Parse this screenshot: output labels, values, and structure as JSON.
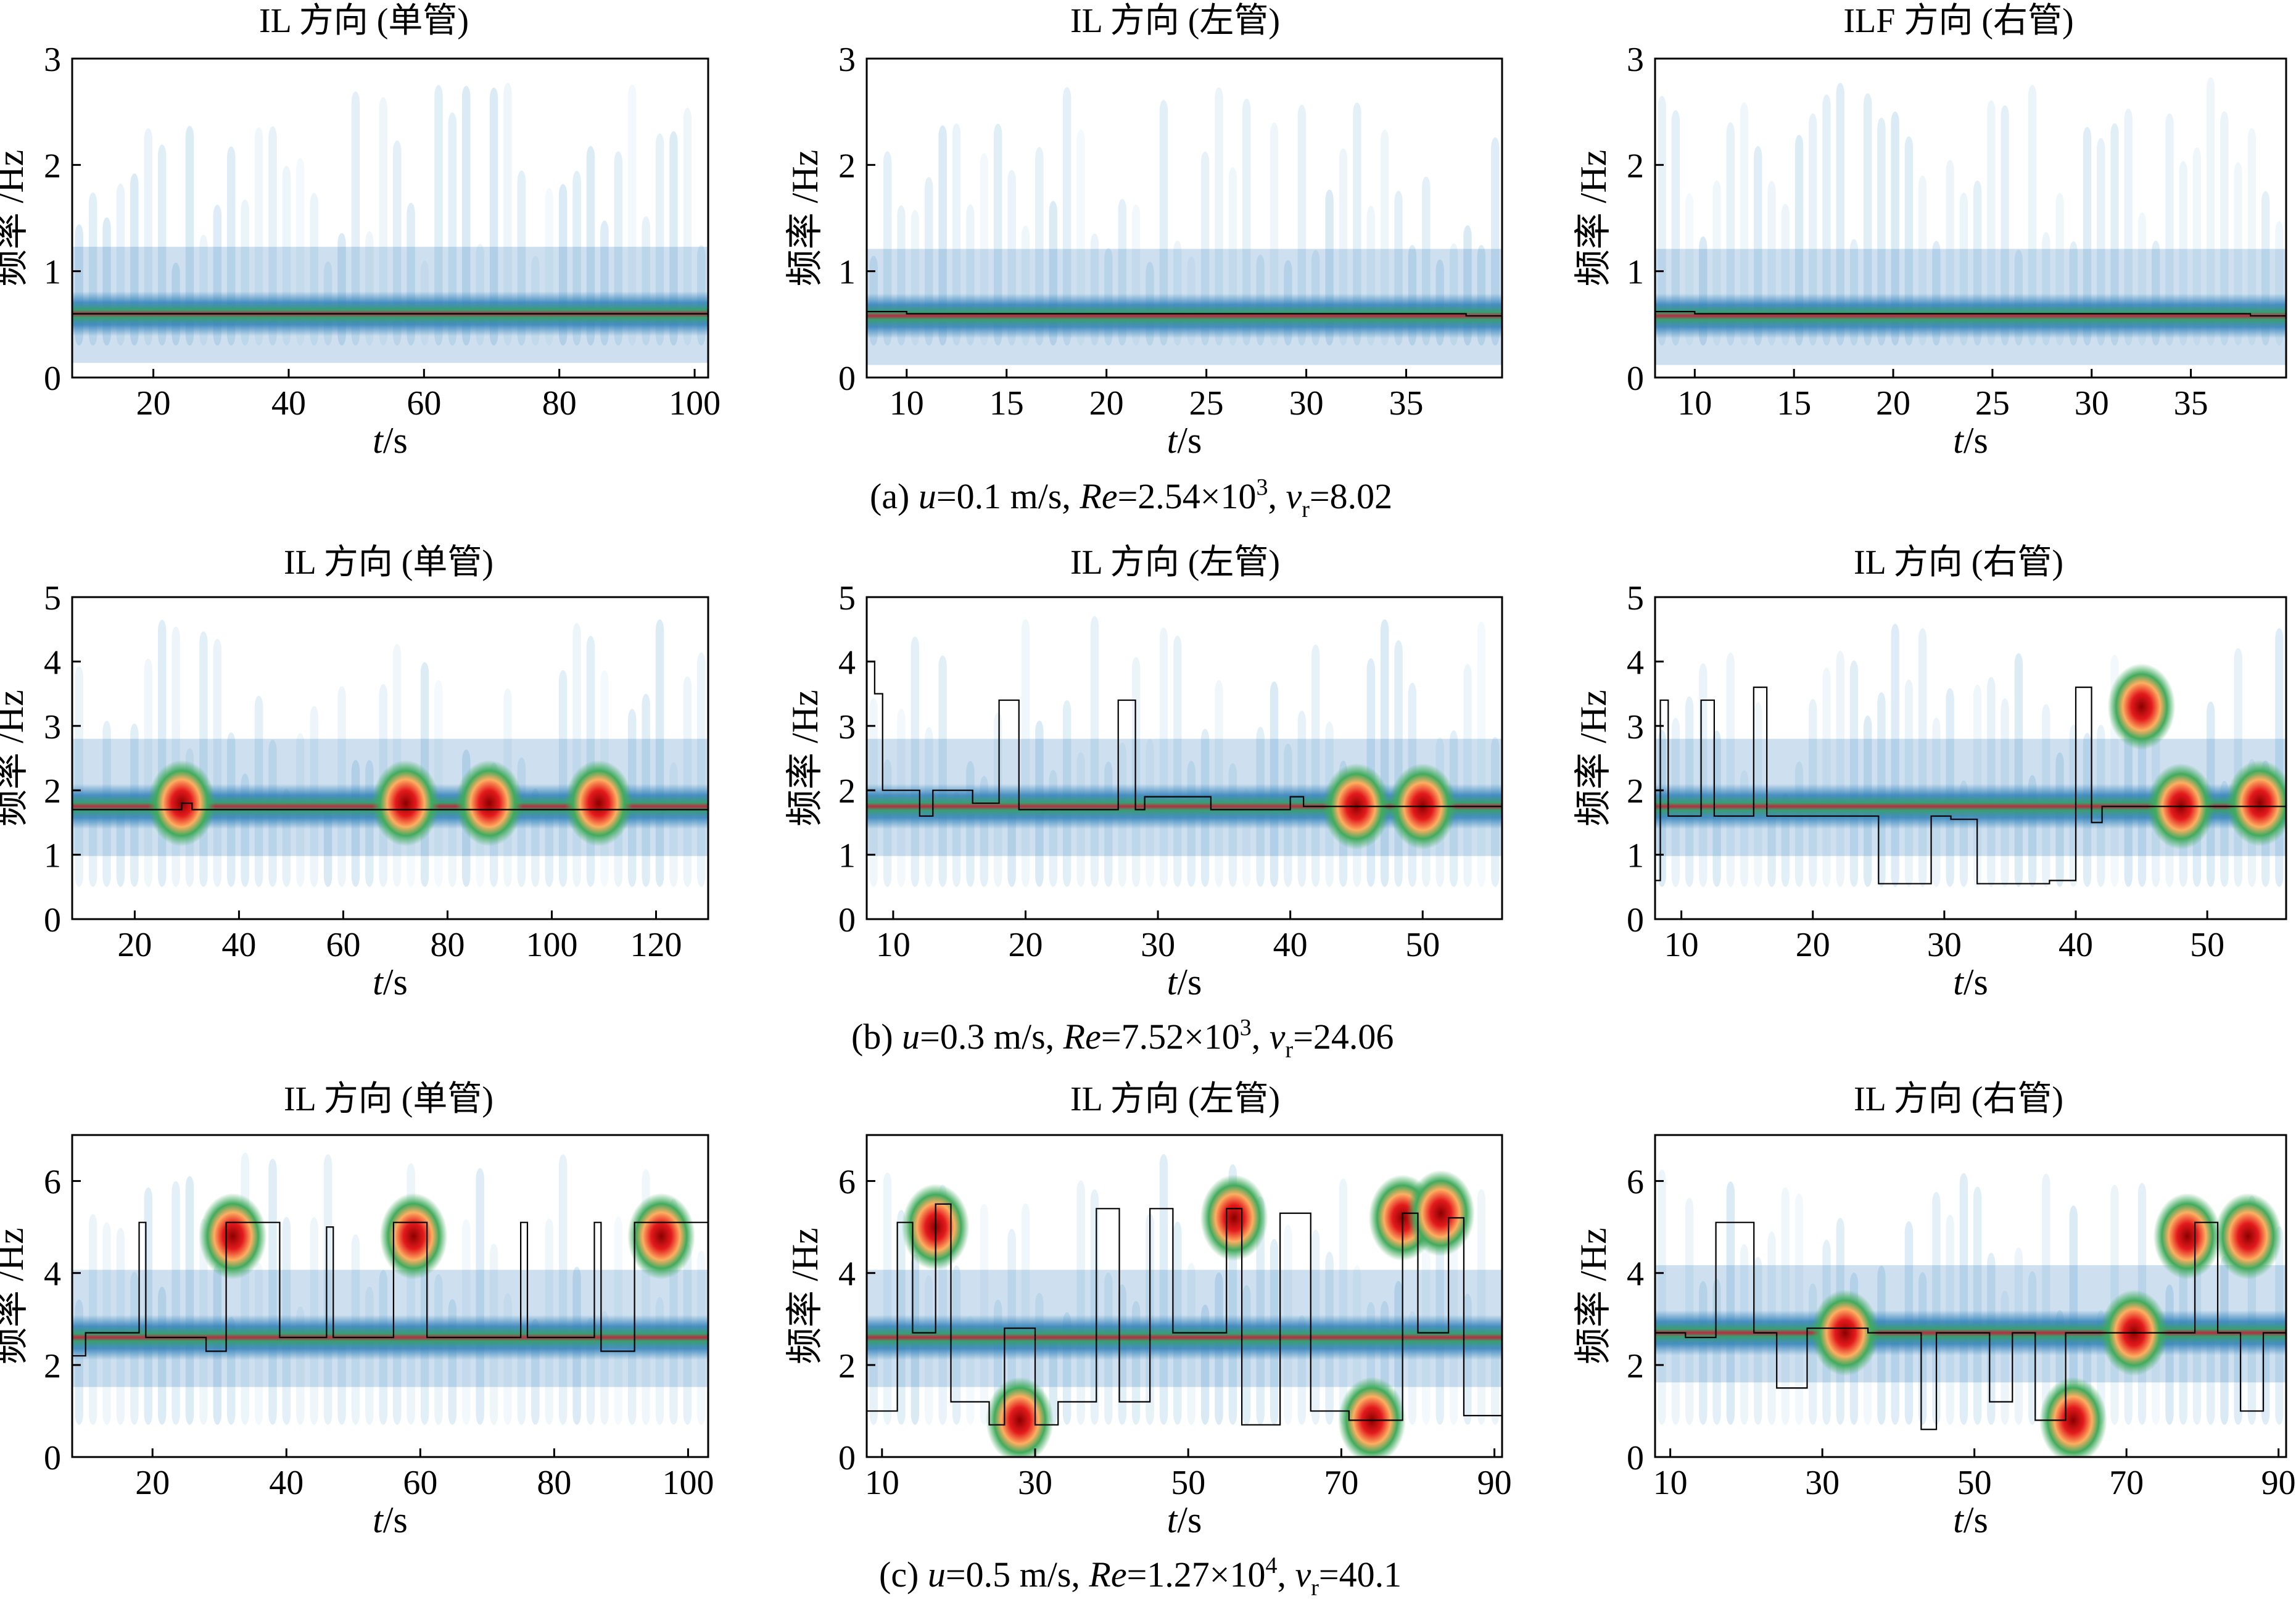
{
  "figure": {
    "rows": [
      {
        "caption": {
          "label": "(a)",
          "u": "0.1 m/s",
          "Re": "2.54×10",
          "Re_exp": "3",
          "vr": "8.02"
        },
        "panels": [
          {
            "title": "IL 方向 (单管)"
          },
          {
            "title": "IL 方向 (左管)"
          },
          {
            "title": "ILF 方向 (右管)"
          }
        ]
      },
      {
        "caption": {
          "label": "(b)",
          "u": "0.3 m/s",
          "Re": "7.52×10",
          "Re_exp": "3",
          "vr": "24.06"
        },
        "panels": [
          {
            "title": "IL 方向 (单管)"
          },
          {
            "title": "IL 方向 (左管)"
          },
          {
            "title": "IL 方向 (右管)"
          }
        ]
      },
      {
        "caption": {
          "label": "(c)",
          "u": "0.5 m/s",
          "Re": "1.27×10",
          "Re_exp": "4",
          "vr": "40.1"
        },
        "panels": [
          {
            "title": "IL 方向 (单管)"
          },
          {
            "title": "IL 方向 (左管)"
          },
          {
            "title": "IL 方向 (右管)"
          }
        ]
      }
    ],
    "xlabel": "t/s",
    "ylabel": "频率 /Hz"
  },
  "chart_data": [
    {
      "type": "heatmap",
      "id": "a-single",
      "title": "IL 方向 (单管)",
      "xlabel": "t/s",
      "ylabel": "频率 /Hz",
      "xlim": [
        8,
        102
      ],
      "ylim": [
        0,
        3
      ],
      "xticks": [
        20,
        40,
        60,
        80,
        100
      ],
      "yticks": [
        0,
        1,
        2,
        3
      ],
      "dominant_frequency_hz": 0.6,
      "hotspots": [],
      "ridge": [
        [
          8,
          0.6
        ],
        [
          102,
          0.6
        ]
      ]
    },
    {
      "type": "heatmap",
      "id": "a-left",
      "title": "IL 方向 (左管)",
      "xlabel": "t/s",
      "ylabel": "频率 /Hz",
      "xlim": [
        8,
        39.8
      ],
      "ylim": [
        0,
        3
      ],
      "xticks": [
        10,
        15,
        20,
        25,
        30,
        35
      ],
      "yticks": [
        0,
        1,
        2,
        3
      ],
      "dominant_frequency_hz": 0.58,
      "hotspots": [],
      "ridge": [
        [
          8,
          0.62
        ],
        [
          10,
          0.6
        ],
        [
          38,
          0.58
        ],
        [
          39.8,
          0.55
        ]
      ]
    },
    {
      "type": "heatmap",
      "id": "a-right",
      "title": "ILF 方向 (右管)",
      "xlabel": "t/s",
      "ylabel": "频率 /Hz",
      "xlim": [
        8,
        39.8
      ],
      "ylim": [
        0,
        3
      ],
      "xticks": [
        10,
        15,
        20,
        25,
        30,
        35
      ],
      "yticks": [
        0,
        1,
        2,
        3
      ],
      "dominant_frequency_hz": 0.58,
      "hotspots": [],
      "ridge": [
        [
          8,
          0.62
        ],
        [
          10,
          0.6
        ],
        [
          38,
          0.58
        ],
        [
          39.8,
          0.55
        ]
      ]
    },
    {
      "type": "heatmap",
      "id": "b-single",
      "title": "IL 方向 (单管)",
      "xlabel": "t/s",
      "ylabel": "频率 /Hz",
      "xlim": [
        8,
        130
      ],
      "ylim": [
        0,
        5
      ],
      "xticks": [
        20,
        40,
        60,
        80,
        100,
        120
      ],
      "yticks": [
        0,
        1,
        2,
        3,
        4,
        5
      ],
      "dominant_frequency_hz": 1.75,
      "hotspots": [
        [
          29,
          1.8
        ],
        [
          72,
          1.8
        ],
        [
          88,
          1.8
        ],
        [
          109,
          1.8
        ]
      ],
      "ridge": [
        [
          8,
          1.7
        ],
        [
          28,
          1.7
        ],
        [
          29,
          1.8
        ],
        [
          31,
          1.7
        ],
        [
          130,
          1.7
        ]
      ]
    },
    {
      "type": "heatmap",
      "id": "b-left",
      "title": "IL 方向 (左管)",
      "xlabel": "t/s",
      "ylabel": "频率 /Hz",
      "xlim": [
        8,
        56
      ],
      "ylim": [
        0,
        5
      ],
      "xticks": [
        10,
        20,
        30,
        40,
        50
      ],
      "yticks": [
        0,
        1,
        2,
        3,
        4,
        5
      ],
      "dominant_frequency_hz": 1.75,
      "hotspots": [
        [
          45,
          1.75
        ],
        [
          50,
          1.75
        ]
      ],
      "ridge": [
        [
          8,
          4.0
        ],
        [
          8.6,
          3.5
        ],
        [
          9.2,
          2.0
        ],
        [
          12,
          1.6
        ],
        [
          13,
          2.0
        ],
        [
          16,
          1.8
        ],
        [
          18,
          3.4
        ],
        [
          19.5,
          1.7
        ],
        [
          26,
          1.7
        ],
        [
          27,
          3.4
        ],
        [
          28.3,
          1.7
        ],
        [
          29,
          1.9
        ],
        [
          34,
          1.7
        ],
        [
          38,
          1.7
        ],
        [
          40,
          1.9
        ],
        [
          41,
          1.75
        ],
        [
          56,
          1.75
        ]
      ]
    },
    {
      "type": "heatmap",
      "id": "b-right",
      "title": "IL 方向 (右管)",
      "xlabel": "t/s",
      "ylabel": "频率 /Hz",
      "xlim": [
        8,
        56
      ],
      "ylim": [
        0,
        5
      ],
      "xticks": [
        10,
        20,
        30,
        40,
        50
      ],
      "yticks": [
        0,
        1,
        2,
        3,
        4,
        5
      ],
      "dominant_frequency_hz": 1.75,
      "hotspots": [
        [
          45,
          3.3
        ],
        [
          48,
          1.75
        ],
        [
          54,
          1.8
        ]
      ],
      "ridge": [
        [
          8,
          0.6
        ],
        [
          8.4,
          3.4
        ],
        [
          9,
          1.6
        ],
        [
          11.5,
          3.4
        ],
        [
          12.5,
          1.6
        ],
        [
          15.5,
          3.6
        ],
        [
          16.5,
          1.6
        ],
        [
          25,
          0.55
        ],
        [
          29,
          1.6
        ],
        [
          30.5,
          1.55
        ],
        [
          32.5,
          0.55
        ],
        [
          38,
          0.6
        ],
        [
          40,
          3.6
        ],
        [
          41.2,
          1.5
        ],
        [
          42,
          1.75
        ],
        [
          56,
          1.75
        ]
      ]
    },
    {
      "type": "heatmap",
      "id": "c-single",
      "title": "IL 方向 (单管)",
      "xlabel": "t/s",
      "ylabel": "频率 /Hz",
      "xlim": [
        8,
        103
      ],
      "ylim": [
        0,
        7
      ],
      "xticks": [
        20,
        40,
        60,
        80,
        100
      ],
      "yticks": [
        0,
        2,
        4,
        6
      ],
      "dominant_frequency_hz": 2.6,
      "hotspots": [
        [
          32,
          4.8
        ],
        [
          59,
          4.8
        ],
        [
          96,
          4.8
        ]
      ],
      "ridge": [
        [
          8,
          2.2
        ],
        [
          10,
          2.7
        ],
        [
          18,
          5.1
        ],
        [
          19,
          2.6
        ],
        [
          28,
          2.3
        ],
        [
          31,
          5.1
        ],
        [
          39,
          2.6
        ],
        [
          46,
          5.0
        ],
        [
          47,
          2.6
        ],
        [
          56,
          5.1
        ],
        [
          61,
          2.6
        ],
        [
          75,
          5.1
        ],
        [
          76,
          2.6
        ],
        [
          86,
          5.1
        ],
        [
          87,
          2.3
        ],
        [
          92,
          5.1
        ],
        [
          103,
          2.6
        ]
      ]
    },
    {
      "type": "heatmap",
      "id": "c-left",
      "title": "IL 方向 (左管)",
      "xlabel": "t/s",
      "ylabel": "频率 /Hz",
      "xlim": [
        8,
        91
      ],
      "ylim": [
        0,
        7
      ],
      "xticks": [
        10,
        30,
        50,
        70,
        90
      ],
      "yticks": [
        0,
        2,
        4,
        6
      ],
      "dominant_frequency_hz": 2.6,
      "hotspots": [
        [
          17,
          5.0
        ],
        [
          28,
          0.8
        ],
        [
          56,
          5.2
        ],
        [
          78,
          5.2
        ],
        [
          83,
          5.3
        ],
        [
          74,
          0.8
        ]
      ],
      "ridge": [
        [
          8,
          1.0
        ],
        [
          12,
          5.1
        ],
        [
          14,
          2.7
        ],
        [
          17,
          5.5
        ],
        [
          19,
          1.2
        ],
        [
          24,
          0.7
        ],
        [
          26,
          2.8
        ],
        [
          30,
          0.7
        ],
        [
          33,
          1.2
        ],
        [
          38,
          5.4
        ],
        [
          41,
          1.2
        ],
        [
          45,
          5.4
        ],
        [
          48,
          2.7
        ],
        [
          55,
          5.4
        ],
        [
          57,
          0.7
        ],
        [
          62,
          5.3
        ],
        [
          66,
          1.0
        ],
        [
          71,
          0.8
        ],
        [
          78,
          5.3
        ],
        [
          80,
          2.7
        ],
        [
          84,
          5.2
        ],
        [
          86,
          0.9
        ],
        [
          91,
          0.9
        ]
      ]
    },
    {
      "type": "heatmap",
      "id": "c-right",
      "title": "IL 方向 (右管)",
      "xlabel": "t/s",
      "ylabel": "频率 /Hz",
      "xlim": [
        8,
        91
      ],
      "ylim": [
        0,
        7
      ],
      "xticks": [
        10,
        30,
        50,
        70,
        90
      ],
      "yticks": [
        0,
        2,
        4,
        6
      ],
      "dominant_frequency_hz": 2.7,
      "hotspots": [
        [
          33,
          2.7
        ],
        [
          71,
          2.7
        ],
        [
          78,
          4.8
        ],
        [
          86,
          4.8
        ],
        [
          63,
          0.8
        ]
      ],
      "ridge": [
        [
          8,
          2.7
        ],
        [
          12,
          2.6
        ],
        [
          16,
          5.1
        ],
        [
          21,
          2.7
        ],
        [
          24,
          1.5
        ],
        [
          28,
          2.8
        ],
        [
          36,
          2.7
        ],
        [
          43,
          0.6
        ],
        [
          45,
          2.7
        ],
        [
          52,
          1.2
        ],
        [
          55,
          2.7
        ],
        [
          58,
          0.8
        ],
        [
          62,
          2.7
        ],
        [
          79,
          5.1
        ],
        [
          82,
          2.7
        ],
        [
          85,
          1.0
        ],
        [
          88,
          2.7
        ],
        [
          91,
          2.7
        ]
      ]
    }
  ]
}
